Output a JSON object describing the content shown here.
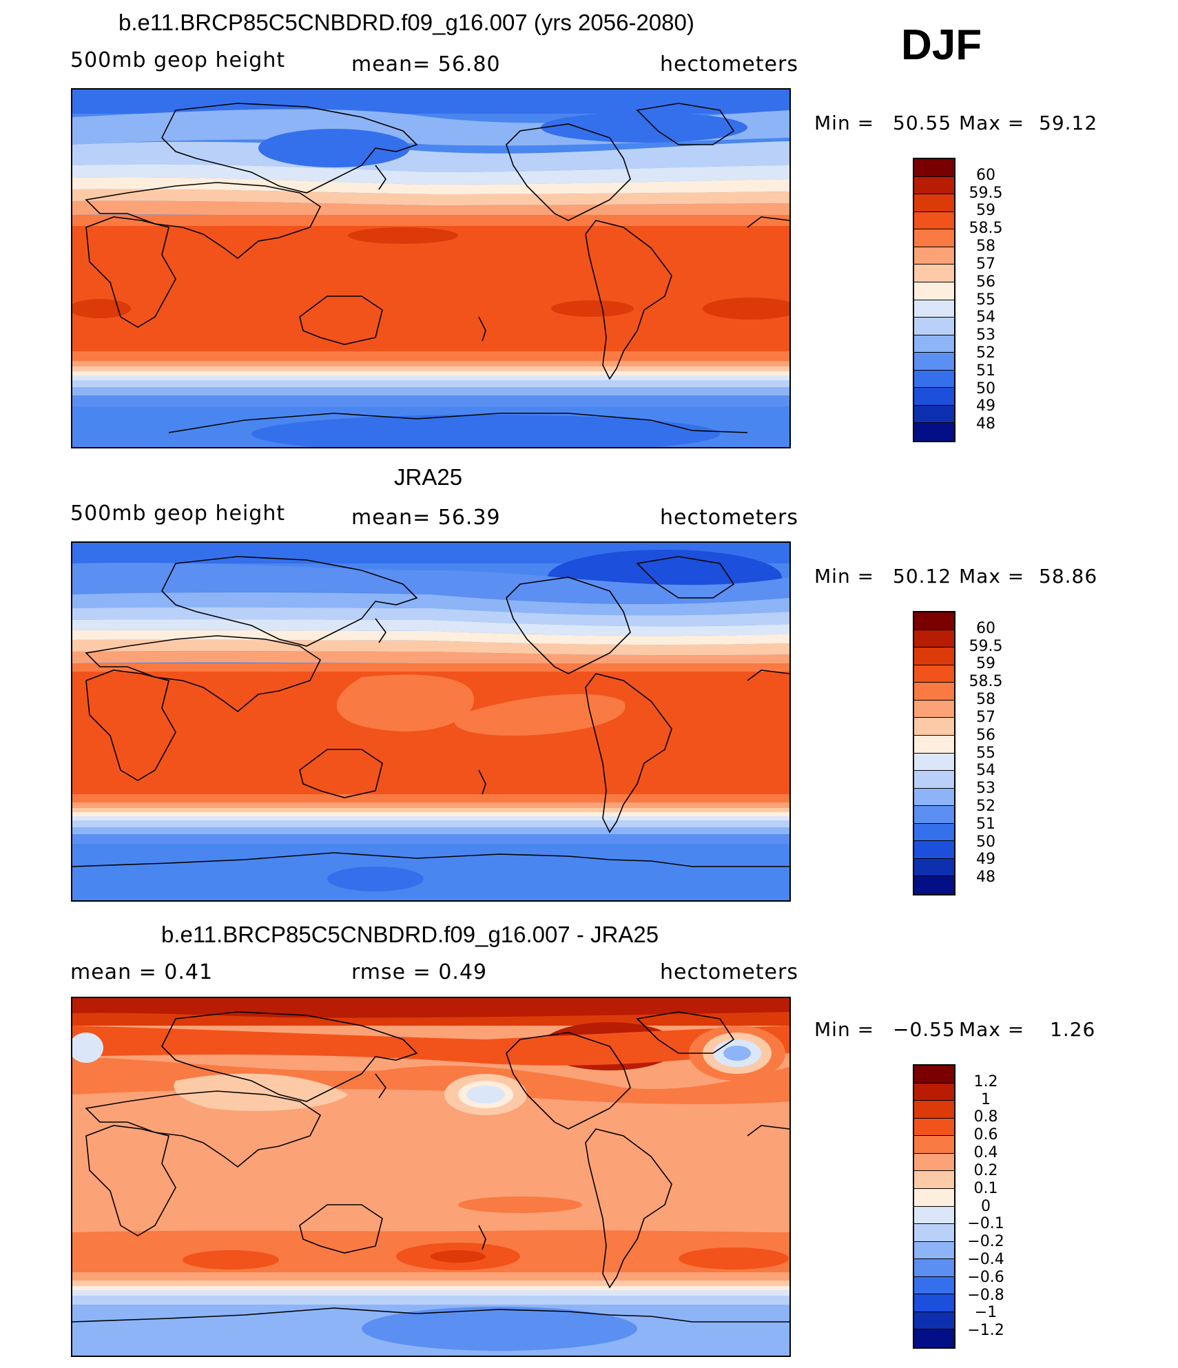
{
  "season": "DJF",
  "panels": [
    {
      "id": "model",
      "title": "b.e11.BRCP85C5CNBDRD.f09_g16.007 (yrs 2056-2080)",
      "left_label": "500mb  geop  height",
      "center_label": "mean=   56.80",
      "right_label": "hectometers",
      "min_label": "Min  =",
      "min_value": "50.55",
      "max_label": "Max  =",
      "max_value": "59.12",
      "colorbar": {
        "colors": [
          "#7a0000",
          "#b81c02",
          "#dc3a08",
          "#f2531b",
          "#f97a42",
          "#fca277",
          "#fdcaa8",
          "#fdeedd",
          "#dbe7f8",
          "#b9d1f8",
          "#8db4f7",
          "#5c8ff2",
          "#3470ec",
          "#1c4fdb",
          "#0d30b0",
          "#020f86"
        ],
        "labels": [
          "60",
          "59.5",
          "59",
          "58.5",
          "58",
          "57",
          "56",
          "55",
          "54",
          "53",
          "52",
          "51",
          "50",
          "49",
          "48"
        ]
      }
    },
    {
      "id": "obs",
      "title": "JRA25",
      "left_label": "500mb  geop  height",
      "center_label": "mean=   56.39",
      "right_label": "hectometers",
      "min_label": "Min  =",
      "min_value": "50.12",
      "max_label": "Max  =",
      "max_value": "58.86",
      "colorbar": {
        "colors": [
          "#7a0000",
          "#b81c02",
          "#dc3a08",
          "#f2531b",
          "#f97a42",
          "#fca277",
          "#fdcaa8",
          "#fdeedd",
          "#dbe7f8",
          "#b9d1f8",
          "#8db4f7",
          "#5c8ff2",
          "#3470ec",
          "#1c4fdb",
          "#0d30b0",
          "#020f86"
        ],
        "labels": [
          "60",
          "59.5",
          "59",
          "58.5",
          "58",
          "57",
          "56",
          "55",
          "54",
          "53",
          "52",
          "51",
          "50",
          "49",
          "48"
        ]
      }
    },
    {
      "id": "diff",
      "title": "b.e11.BRCP85C5CNBDRD.f09_g16.007 - JRA25",
      "left_label": "mean =     0.41",
      "center_label": "rmse =     0.49",
      "right_label": "hectometers",
      "min_label": "Min  =",
      "min_value": "−0.55",
      "max_label": "Max  =",
      "max_value": "1.26",
      "colorbar": {
        "colors": [
          "#7a0000",
          "#b81c02",
          "#dc3a08",
          "#f2531b",
          "#f97a42",
          "#fca277",
          "#fdcaa8",
          "#fdeedd",
          "#dbe7f8",
          "#b9d1f8",
          "#8db4f7",
          "#5c8ff2",
          "#3470ec",
          "#1c4fdb",
          "#0d30b0",
          "#020f86"
        ],
        "labels": [
          "1.2",
          "1",
          "0.8",
          "0.6",
          "0.4",
          "0.2",
          "0.1",
          "0",
          "−0.1",
          "−0.2",
          "−0.4",
          "−0.6",
          "−0.8",
          "−1",
          "−1.2"
        ]
      }
    }
  ]
}
